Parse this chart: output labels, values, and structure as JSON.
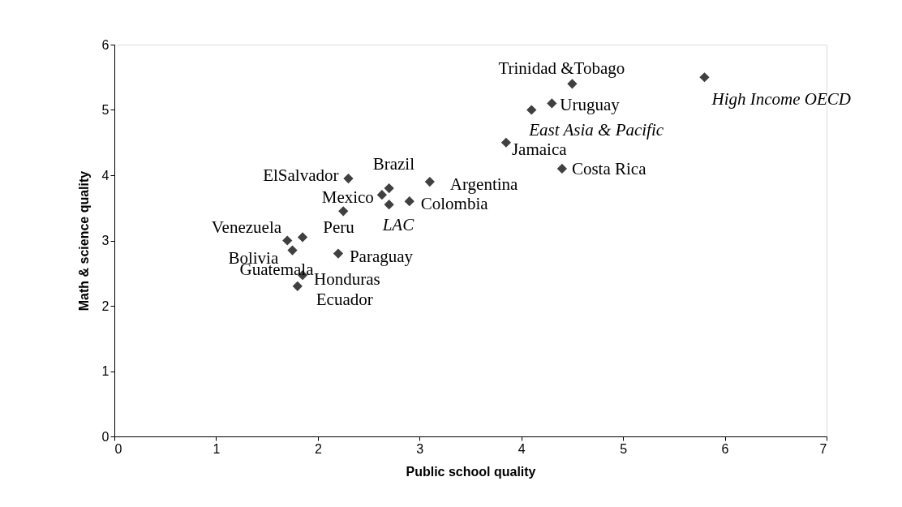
{
  "chart_data": {
    "type": "scatter",
    "xlabel": "Public school quality",
    "ylabel": "Math & science quality",
    "xlim": [
      0,
      7
    ],
    "xticks": [
      0,
      1,
      2,
      3,
      4,
      5,
      6,
      7
    ],
    "ylim": [
      0,
      6
    ],
    "yticks": [
      0,
      1,
      2,
      3,
      4,
      5,
      6
    ],
    "grid": false,
    "marker": "diamond",
    "series": [
      {
        "color": "#404040",
        "x": [
          4.5,
          5.8,
          4.3,
          4.1,
          3.85,
          4.4,
          2.3,
          2.7,
          2.63,
          2.7,
          2.9,
          3.1,
          2.25,
          1.85,
          1.7,
          1.75,
          2.2,
          1.85,
          1.8
        ],
        "values": [
          5.4,
          5.5,
          5.1,
          5.0,
          4.5,
          4.1,
          3.95,
          3.8,
          3.7,
          3.55,
          3.6,
          3.9,
          3.45,
          3.05,
          3.0,
          2.85,
          2.8,
          2.47,
          2.3
        ]
      }
    ],
    "annotations": [
      {
        "text": "Trinidad &Tobago",
        "x": 4.5,
        "y": 5.4
      },
      {
        "text": "High Income OECD",
        "x": 5.8,
        "y": 5.5
      },
      {
        "text": "Uruguay",
        "x": 4.3,
        "y": 5.1
      },
      {
        "text": "East Asia & Pacific",
        "x": 4.1,
        "y": 5.0
      },
      {
        "text": "Jamaica",
        "x": 3.85,
        "y": 4.5
      },
      {
        "text": "Costa Rica",
        "x": 4.4,
        "y": 4.1
      },
      {
        "text": "ElSalvador",
        "x": 2.3,
        "y": 3.95
      },
      {
        "text": "Brazil",
        "x": 2.7,
        "y": 3.8
      },
      {
        "text": "Mexico",
        "x": 2.63,
        "y": 3.7
      },
      {
        "text": "LAC",
        "x": 2.7,
        "y": 3.55
      },
      {
        "text": "Colombia",
        "x": 2.9,
        "y": 3.6
      },
      {
        "text": "Argentina",
        "x": 3.1,
        "y": 3.9
      },
      {
        "text": "Peru",
        "x": 2.25,
        "y": 3.45
      },
      {
        "text": "Venezuela",
        "x": 1.85,
        "y": 3.05
      },
      {
        "text": "Bolivia",
        "x": 1.7,
        "y": 3.0
      },
      {
        "text": "Guatemala",
        "x": 1.75,
        "y": 2.85
      },
      {
        "text": "Paraguay",
        "x": 2.2,
        "y": 2.8
      },
      {
        "text": "Honduras",
        "x": 1.85,
        "y": 2.47
      },
      {
        "text": "Ecuador",
        "x": 1.8,
        "y": 2.3
      }
    ]
  }
}
